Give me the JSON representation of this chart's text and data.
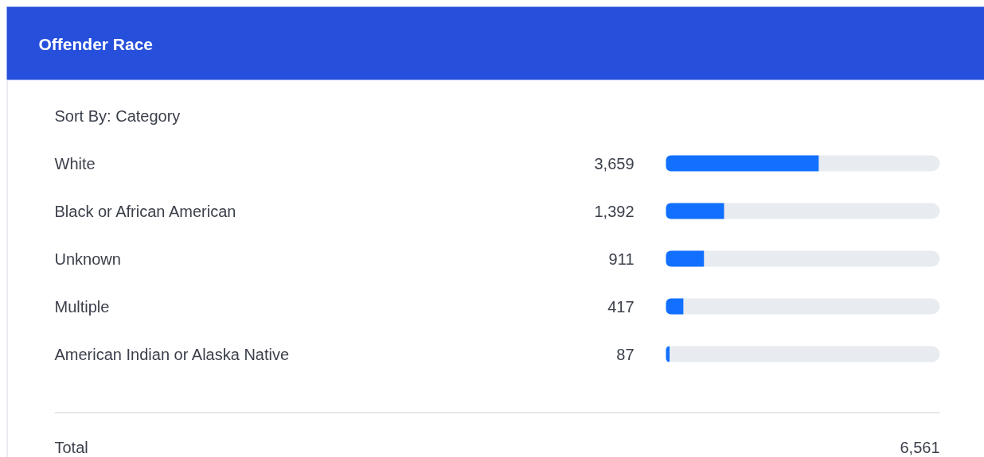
{
  "chart_data": {
    "type": "bar",
    "orientation": "horizontal",
    "title": "Offender Race",
    "categories": [
      "White",
      "Black or African American",
      "Unknown",
      "Multiple",
      "American Indian or Alaska Native"
    ],
    "values": [
      3659,
      1392,
      911,
      417,
      87
    ],
    "value_labels": [
      "3,659",
      "1,392",
      "911",
      "417",
      "87"
    ],
    "color": "#1170ff",
    "xlim": [
      0,
      6561
    ],
    "tick_labels": false,
    "data_labels": true,
    "grid": false,
    "annotations": [
      "Sort By: Category",
      "Total",
      "6,561"
    ]
  }
}
